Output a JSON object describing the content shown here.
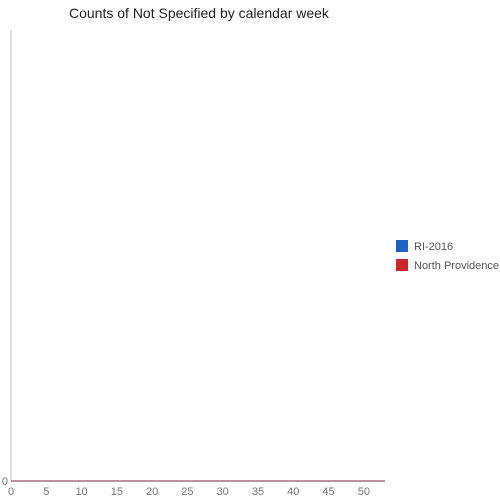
{
  "chart_data": {
    "type": "line",
    "title": "Counts of Not Specified by calendar week",
    "xlabel": "",
    "ylabel": "",
    "x_ticks": [
      "0",
      "5",
      "10",
      "15",
      "20",
      "25",
      "30",
      "35",
      "40",
      "45",
      "50"
    ],
    "y_ticks": [
      "0"
    ],
    "xlim": [
      0,
      53
    ],
    "ylim": [
      0,
      1
    ],
    "grid": false,
    "legend_position": "right",
    "x": [
      0,
      53
    ],
    "series": [
      {
        "name": "RI-2016",
        "color": "#1c63c4",
        "values": [
          0,
          0
        ]
      },
      {
        "name": "North Providence",
        "color": "#c62828",
        "values": [
          0,
          0
        ]
      }
    ]
  }
}
